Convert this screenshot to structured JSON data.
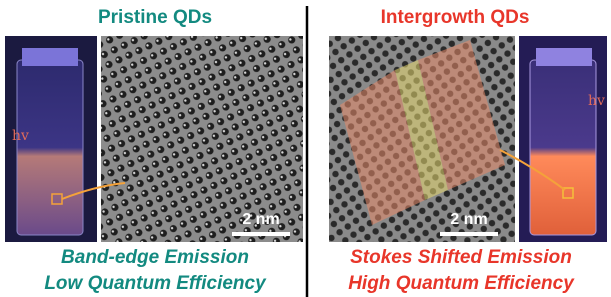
{
  "left_panel": {
    "title": "Pristine QDs",
    "scale_bar": "2 nm",
    "hv_label": "hv",
    "caption_lines": [
      "Band-edge Emission",
      "Low Quantum Efficiency"
    ]
  },
  "right_panel": {
    "title": "Intergrowth QDs",
    "scale_bar": "2 nm",
    "hv_label": "hv",
    "caption_lines": [
      "Stokes Shifted Emission",
      "High Quantum Efficiency"
    ]
  }
}
